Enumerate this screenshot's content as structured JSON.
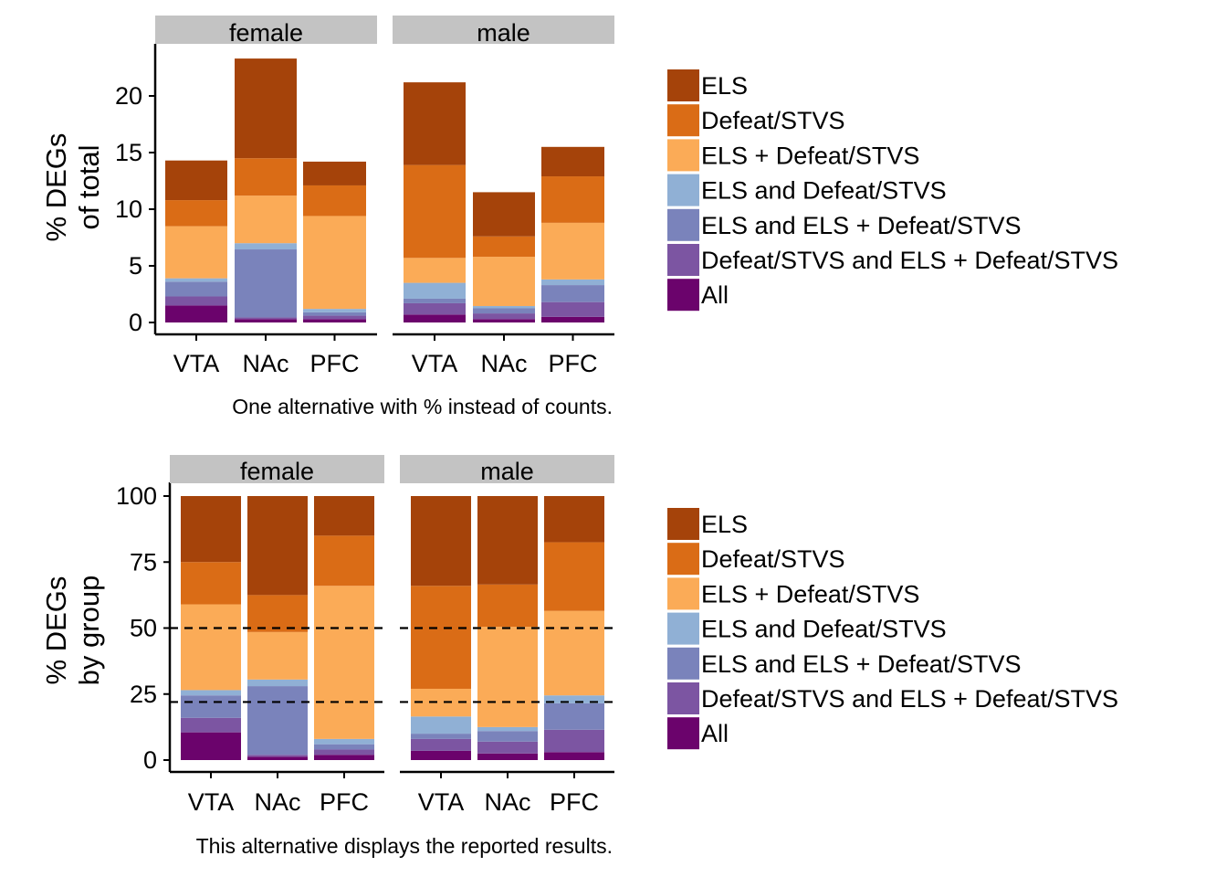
{
  "colors": {
    "ELS": "#a5430a",
    "Defeat/STVS": "#da6c16",
    "ELS + Defeat/STVS": "#fbab57",
    "ELS and Defeat/STVS": "#90b0d5",
    "ELS and ELS + Defeat/STVS": "#7a83bb",
    "Defeat/STVS and ELS + Defeat/STVS": "#7c55a2",
    "All": "#6b036c",
    "strip": "#c3c3c3",
    "dash": "#000000"
  },
  "legend": {
    "items": [
      "ELS",
      "Defeat/STVS",
      "ELS + Defeat/STVS",
      "ELS and Defeat/STVS",
      "ELS and ELS + Defeat/STVS",
      "Defeat/STVS and ELS + Defeat/STVS",
      "All"
    ]
  },
  "chart_data": [
    {
      "type": "bar",
      "stacked": true,
      "facets": [
        "female",
        "male"
      ],
      "categories": [
        "VTA",
        "NAc",
        "PFC"
      ],
      "ylabel": [
        "% DEGs",
        "of total"
      ],
      "ylim": [
        0,
        23.3
      ],
      "yticks": [
        0,
        5,
        10,
        15,
        20
      ],
      "caption": "One alternative with % instead of counts.",
      "stack_order": [
        "All",
        "Defeat/STVS and ELS + Defeat/STVS",
        "ELS and ELS + Defeat/STVS",
        "ELS and Defeat/STVS",
        "ELS + Defeat/STVS",
        "Defeat/STVS",
        "ELS"
      ],
      "values": {
        "female": {
          "VTA": {
            "All": 1.5,
            "Defeat/STVS and ELS + Defeat/STVS": 0.8,
            "ELS and ELS + Defeat/STVS": 1.3,
            "ELS and Defeat/STVS": 0.3,
            "ELS + Defeat/STVS": 4.6,
            "Defeat/STVS": 2.3,
            "ELS": 3.5
          },
          "NAc": {
            "All": 0.3,
            "Defeat/STVS and ELS + Defeat/STVS": 0.15,
            "ELS and ELS + Defeat/STVS": 6.0,
            "ELS and Defeat/STVS": 0.55,
            "ELS + Defeat/STVS": 4.2,
            "Defeat/STVS": 3.3,
            "ELS": 8.8
          },
          "PFC": {
            "All": 0.3,
            "Defeat/STVS and ELS + Defeat/STVS": 0.3,
            "ELS and ELS + Defeat/STVS": 0.3,
            "ELS and Defeat/STVS": 0.3,
            "ELS + Defeat/STVS": 8.2,
            "Defeat/STVS": 2.7,
            "ELS": 2.1
          }
        },
        "male": {
          "VTA": {
            "All": 0.7,
            "Defeat/STVS and ELS + Defeat/STVS": 1.0,
            "ELS and ELS + Defeat/STVS": 0.4,
            "ELS and Defeat/STVS": 1.4,
            "ELS + Defeat/STVS": 2.2,
            "Defeat/STVS": 8.2,
            "ELS": 7.3
          },
          "NAc": {
            "All": 0.3,
            "Defeat/STVS and ELS + Defeat/STVS": 0.5,
            "ELS and ELS + Defeat/STVS": 0.45,
            "ELS and Defeat/STVS": 0.2,
            "ELS + Defeat/STVS": 4.35,
            "Defeat/STVS": 1.8,
            "ELS": 3.9
          },
          "PFC": {
            "All": 0.5,
            "Defeat/STVS and ELS + Defeat/STVS": 1.3,
            "ELS and ELS + Defeat/STVS": 1.5,
            "ELS and Defeat/STVS": 0.5,
            "ELS + Defeat/STVS": 5.0,
            "Defeat/STVS": 4.1,
            "ELS": 2.6
          }
        }
      }
    },
    {
      "type": "bar",
      "stacked": true,
      "facets": [
        "female",
        "male"
      ],
      "categories": [
        "VTA",
        "NAc",
        "PFC"
      ],
      "ylabel": [
        "% DEGs",
        "by group"
      ],
      "ylim": [
        0,
        100
      ],
      "yticks": [
        0,
        25,
        50,
        75,
        100
      ],
      "hlines": [
        50,
        22
      ],
      "caption": "This alternative displays the reported results.",
      "stack_order": [
        "All",
        "Defeat/STVS and ELS + Defeat/STVS",
        "ELS and ELS + Defeat/STVS",
        "ELS and Defeat/STVS",
        "ELS + Defeat/STVS",
        "Defeat/STVS",
        "ELS"
      ],
      "values": {
        "female": {
          "VTA": {
            "All": 10.5,
            "Defeat/STVS and ELS + Defeat/STVS": 5.5,
            "ELS and ELS + Defeat/STVS": 8.5,
            "ELS and Defeat/STVS": 2.0,
            "ELS + Defeat/STVS": 32.5,
            "Defeat/STVS": 16.0,
            "ELS": 25.0
          },
          "NAc": {
            "All": 1.3,
            "Defeat/STVS and ELS + Defeat/STVS": 0.7,
            "ELS and ELS + Defeat/STVS": 26.0,
            "ELS and Defeat/STVS": 2.5,
            "ELS + Defeat/STVS": 18.0,
            "Defeat/STVS": 14.0,
            "ELS": 37.5
          },
          "PFC": {
            "All": 2.0,
            "Defeat/STVS and ELS + Defeat/STVS": 2.0,
            "ELS and ELS + Defeat/STVS": 2.0,
            "ELS and Defeat/STVS": 2.0,
            "ELS + Defeat/STVS": 58.0,
            "Defeat/STVS": 19.0,
            "ELS": 15.0
          }
        },
        "male": {
          "VTA": {
            "All": 3.5,
            "Defeat/STVS and ELS + Defeat/STVS": 4.5,
            "ELS and ELS + Defeat/STVS": 2.0,
            "ELS and Defeat/STVS": 6.5,
            "ELS + Defeat/STVS": 10.5,
            "Defeat/STVS": 39.0,
            "ELS": 34.0
          },
          "NAc": {
            "All": 2.5,
            "Defeat/STVS and ELS + Defeat/STVS": 4.5,
            "ELS and ELS + Defeat/STVS": 4.0,
            "ELS and Defeat/STVS": 1.5,
            "ELS + Defeat/STVS": 38.0,
            "Defeat/STVS": 16.0,
            "ELS": 33.5
          },
          "PFC": {
            "All": 3.0,
            "Defeat/STVS and ELS + Defeat/STVS": 8.5,
            "ELS and ELS + Defeat/STVS": 10.0,
            "ELS and Defeat/STVS": 3.0,
            "ELS + Defeat/STVS": 32.0,
            "Defeat/STVS": 26.0,
            "ELS": 17.5
          }
        }
      }
    }
  ]
}
